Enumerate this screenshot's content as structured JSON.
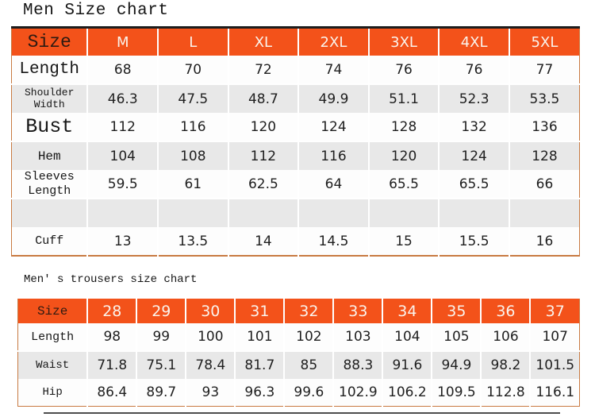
{
  "titles": {
    "men": "Men Size chart",
    "trousers": "Men' s trousers size chart"
  },
  "colors": {
    "header_orange": "#F3521A",
    "row_gray": "#E8E8E8",
    "outer_border_brown": "#C87A42",
    "top_rule_black": "#1C1C1C",
    "header_text_white": "#FAF3EC"
  },
  "table1": {
    "header": [
      "Size",
      "M",
      "L",
      "XL",
      "2XL",
      "3XL",
      "4XL",
      "5XL"
    ],
    "rows": [
      {
        "label": "Length",
        "values": [
          "68",
          "70",
          "72",
          "74",
          "76",
          "76",
          "77"
        ]
      },
      {
        "label": "Shoulder Width",
        "values": [
          "46.3",
          "47.5",
          "48.7",
          "49.9",
          "51.1",
          "52.3",
          "53.5"
        ]
      },
      {
        "label": "Bust",
        "values": [
          "112",
          "116",
          "120",
          "124",
          "128",
          "132",
          "136"
        ]
      },
      {
        "label": "Hem",
        "values": [
          "104",
          "108",
          "112",
          "116",
          "120",
          "124",
          "128"
        ]
      },
      {
        "label": "Sleeves Length",
        "values": [
          "59.5",
          "61",
          "62.5",
          "64",
          "65.5",
          "65.5",
          "66"
        ]
      },
      {
        "label": "",
        "values": [
          "",
          "",
          "",
          "",
          "",
          "",
          ""
        ]
      },
      {
        "label": "Cuff",
        "values": [
          "13",
          "13.5",
          "14",
          "14.5",
          "15",
          "15.5",
          "16"
        ]
      }
    ]
  },
  "table2": {
    "header": [
      "Size",
      "28",
      "29",
      "30",
      "31",
      "32",
      "33",
      "34",
      "35",
      "36",
      "37"
    ],
    "rows": [
      {
        "label": "Length",
        "values": [
          "98",
          "99",
          "100",
          "101",
          "102",
          "103",
          "104",
          "105",
          "106",
          "107"
        ]
      },
      {
        "label": "Waist",
        "values": [
          "71.8",
          "75.1",
          "78.4",
          "81.7",
          "85",
          "88.3",
          "91.6",
          "94.9",
          "98.2",
          "101.5"
        ]
      },
      {
        "label": "Hip",
        "values": [
          "86.4",
          "89.7",
          "93",
          "96.3",
          "99.6",
          "102.9",
          "106.2",
          "109.5",
          "112.8",
          "116.1"
        ]
      }
    ]
  }
}
